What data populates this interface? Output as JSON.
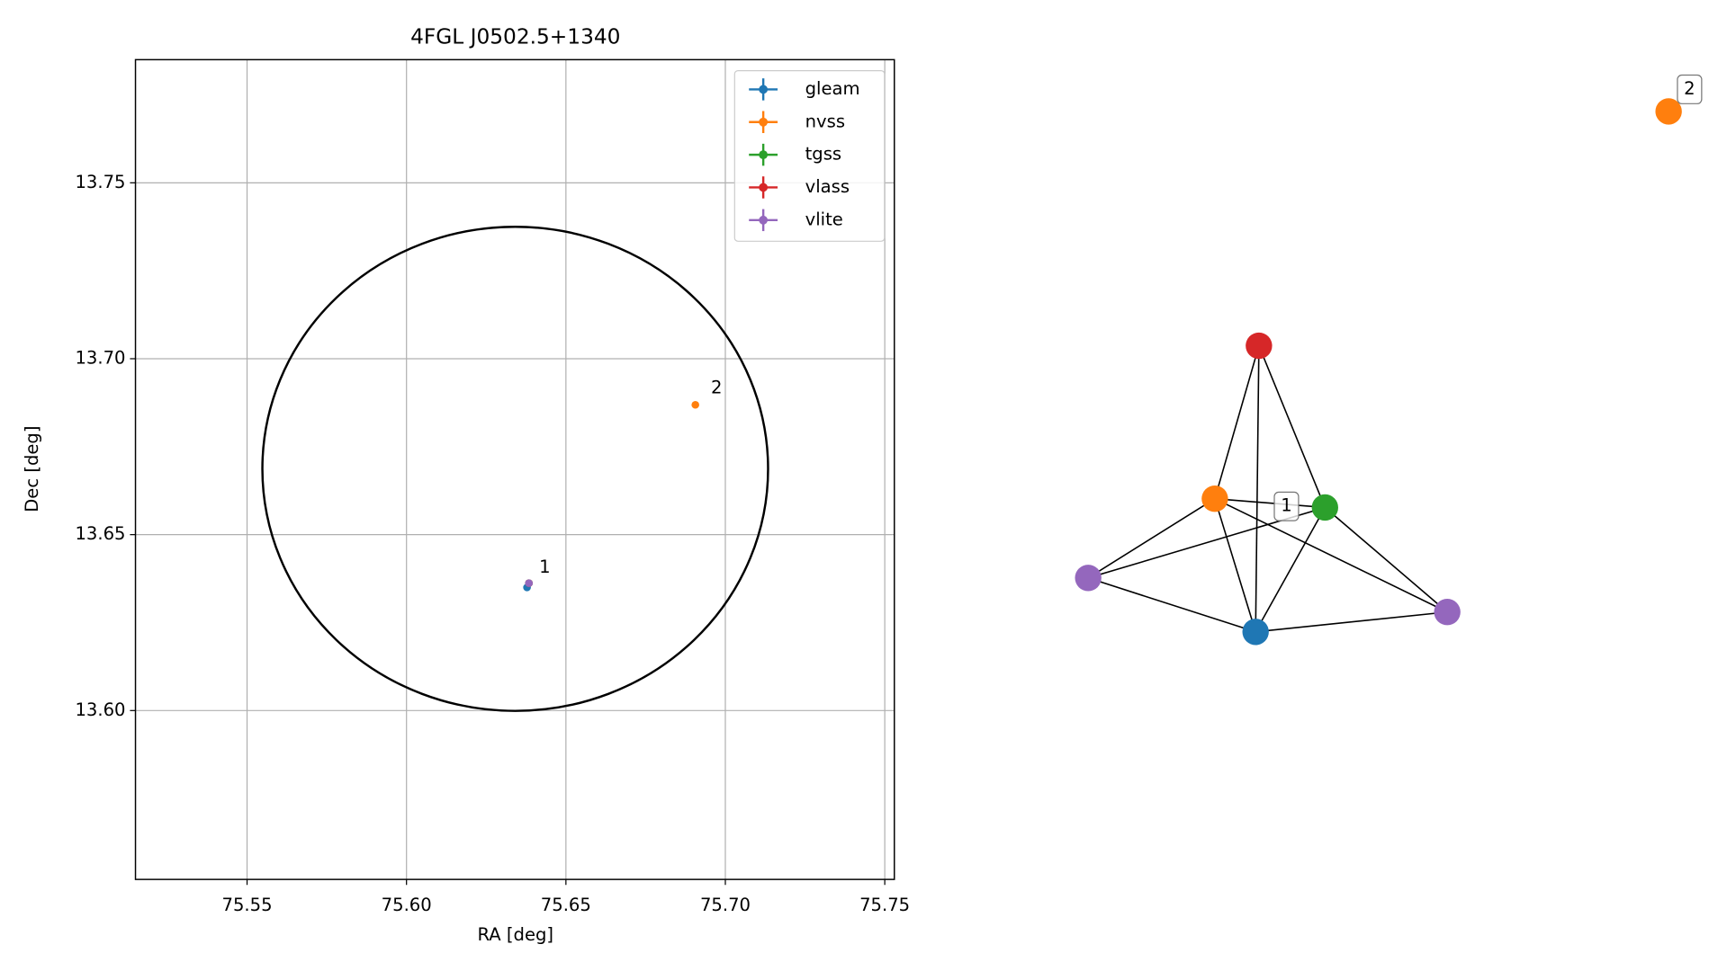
{
  "chart_data": [
    {
      "type": "scatter",
      "title": "4FGL J0502.5+1340",
      "x_label": "RA [deg]",
      "y_label": "Dec [deg]",
      "xlim": [
        75.515,
        75.753
      ],
      "ylim": [
        13.552,
        13.785
      ],
      "xticks": [
        75.55,
        {
          "value": 75.6,
          "label": "75.60"
        },
        75.65,
        {
          "value": 75.7,
          "label": "75.70"
        },
        75.75
      ],
      "yticks": [
        {
          "value": 13.6,
          "label": "13.60"
        },
        13.65,
        {
          "value": 13.7,
          "label": "13.70"
        },
        13.75
      ],
      "grid": true,
      "legend": "upper right",
      "series": [
        {
          "name": "gleam",
          "color": "#1f77b4",
          "x": [
            75.6378
          ],
          "y": [
            13.635
          ]
        },
        {
          "name": "nvss",
          "color": "#ff7f0e",
          "x": [
            75.6906
          ],
          "y": [
            13.6869
          ]
        },
        {
          "name": "tgss",
          "color": "#2ca02c",
          "x": [
            75.6384
          ],
          "y": [
            13.6362
          ]
        },
        {
          "name": "vlass",
          "color": "#d62728",
          "x": [
            75.6384
          ],
          "y": [
            13.6362
          ]
        },
        {
          "name": "vlite",
          "color": "#9467bd",
          "x": [
            75.6384
          ],
          "y": [
            13.6362
          ]
        }
      ],
      "ellipse": {
        "ra": 75.6341,
        "dec": 13.6687,
        "width": 0.1586,
        "height": 0.1376,
        "color": "#000000"
      },
      "annotations": [
        {
          "text": "1",
          "x": 75.6416,
          "y": 13.6406
        },
        {
          "text": "2",
          "x": 75.6955,
          "y": 13.6916
        }
      ]
    },
    {
      "type": "network",
      "nodes": [
        {
          "color": "#d62728"
        },
        {
          "color": "#ff7f0e"
        },
        {
          "color": "#2ca02c"
        },
        {
          "color": "#9467bd"
        },
        {
          "color": "#1f77b4"
        },
        {
          "color": "#9467bd"
        },
        {
          "color": "#ff7f0e"
        }
      ],
      "edges": [
        [
          0,
          1
        ],
        [
          0,
          2
        ],
        [
          0,
          4
        ],
        [
          1,
          2
        ],
        [
          1,
          3
        ],
        [
          1,
          4
        ],
        [
          1,
          5
        ],
        [
          2,
          3
        ],
        [
          2,
          4
        ],
        [
          2,
          5
        ],
        [
          3,
          4
        ],
        [
          4,
          5
        ]
      ],
      "labels": [
        "1",
        "2"
      ]
    }
  ]
}
